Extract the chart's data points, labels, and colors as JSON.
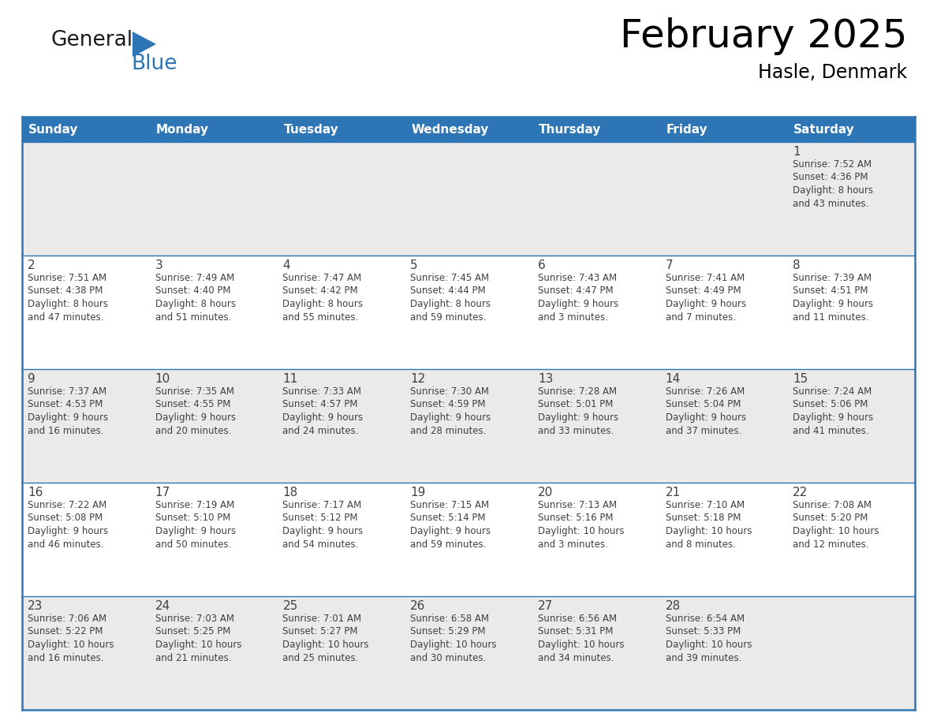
{
  "title": "February 2025",
  "subtitle": "Hasle, Denmark",
  "header_bg": "#2E75B6",
  "header_text_color": "#FFFFFF",
  "cell_bg_odd": "#EAEAEA",
  "cell_bg_even": "#FFFFFF",
  "border_color": "#2E75B6",
  "text_color": "#404040",
  "days_of_week": [
    "Sunday",
    "Monday",
    "Tuesday",
    "Wednesday",
    "Thursday",
    "Friday",
    "Saturday"
  ],
  "weeks": [
    [
      {
        "day": "",
        "info": ""
      },
      {
        "day": "",
        "info": ""
      },
      {
        "day": "",
        "info": ""
      },
      {
        "day": "",
        "info": ""
      },
      {
        "day": "",
        "info": ""
      },
      {
        "day": "",
        "info": ""
      },
      {
        "day": "1",
        "info": "Sunrise: 7:52 AM\nSunset: 4:36 PM\nDaylight: 8 hours\nand 43 minutes."
      }
    ],
    [
      {
        "day": "2",
        "info": "Sunrise: 7:51 AM\nSunset: 4:38 PM\nDaylight: 8 hours\nand 47 minutes."
      },
      {
        "day": "3",
        "info": "Sunrise: 7:49 AM\nSunset: 4:40 PM\nDaylight: 8 hours\nand 51 minutes."
      },
      {
        "day": "4",
        "info": "Sunrise: 7:47 AM\nSunset: 4:42 PM\nDaylight: 8 hours\nand 55 minutes."
      },
      {
        "day": "5",
        "info": "Sunrise: 7:45 AM\nSunset: 4:44 PM\nDaylight: 8 hours\nand 59 minutes."
      },
      {
        "day": "6",
        "info": "Sunrise: 7:43 AM\nSunset: 4:47 PM\nDaylight: 9 hours\nand 3 minutes."
      },
      {
        "day": "7",
        "info": "Sunrise: 7:41 AM\nSunset: 4:49 PM\nDaylight: 9 hours\nand 7 minutes."
      },
      {
        "day": "8",
        "info": "Sunrise: 7:39 AM\nSunset: 4:51 PM\nDaylight: 9 hours\nand 11 minutes."
      }
    ],
    [
      {
        "day": "9",
        "info": "Sunrise: 7:37 AM\nSunset: 4:53 PM\nDaylight: 9 hours\nand 16 minutes."
      },
      {
        "day": "10",
        "info": "Sunrise: 7:35 AM\nSunset: 4:55 PM\nDaylight: 9 hours\nand 20 minutes."
      },
      {
        "day": "11",
        "info": "Sunrise: 7:33 AM\nSunset: 4:57 PM\nDaylight: 9 hours\nand 24 minutes."
      },
      {
        "day": "12",
        "info": "Sunrise: 7:30 AM\nSunset: 4:59 PM\nDaylight: 9 hours\nand 28 minutes."
      },
      {
        "day": "13",
        "info": "Sunrise: 7:28 AM\nSunset: 5:01 PM\nDaylight: 9 hours\nand 33 minutes."
      },
      {
        "day": "14",
        "info": "Sunrise: 7:26 AM\nSunset: 5:04 PM\nDaylight: 9 hours\nand 37 minutes."
      },
      {
        "day": "15",
        "info": "Sunrise: 7:24 AM\nSunset: 5:06 PM\nDaylight: 9 hours\nand 41 minutes."
      }
    ],
    [
      {
        "day": "16",
        "info": "Sunrise: 7:22 AM\nSunset: 5:08 PM\nDaylight: 9 hours\nand 46 minutes."
      },
      {
        "day": "17",
        "info": "Sunrise: 7:19 AM\nSunset: 5:10 PM\nDaylight: 9 hours\nand 50 minutes."
      },
      {
        "day": "18",
        "info": "Sunrise: 7:17 AM\nSunset: 5:12 PM\nDaylight: 9 hours\nand 54 minutes."
      },
      {
        "day": "19",
        "info": "Sunrise: 7:15 AM\nSunset: 5:14 PM\nDaylight: 9 hours\nand 59 minutes."
      },
      {
        "day": "20",
        "info": "Sunrise: 7:13 AM\nSunset: 5:16 PM\nDaylight: 10 hours\nand 3 minutes."
      },
      {
        "day": "21",
        "info": "Sunrise: 7:10 AM\nSunset: 5:18 PM\nDaylight: 10 hours\nand 8 minutes."
      },
      {
        "day": "22",
        "info": "Sunrise: 7:08 AM\nSunset: 5:20 PM\nDaylight: 10 hours\nand 12 minutes."
      }
    ],
    [
      {
        "day": "23",
        "info": "Sunrise: 7:06 AM\nSunset: 5:22 PM\nDaylight: 10 hours\nand 16 minutes."
      },
      {
        "day": "24",
        "info": "Sunrise: 7:03 AM\nSunset: 5:25 PM\nDaylight: 10 hours\nand 21 minutes."
      },
      {
        "day": "25",
        "info": "Sunrise: 7:01 AM\nSunset: 5:27 PM\nDaylight: 10 hours\nand 25 minutes."
      },
      {
        "day": "26",
        "info": "Sunrise: 6:58 AM\nSunset: 5:29 PM\nDaylight: 10 hours\nand 30 minutes."
      },
      {
        "day": "27",
        "info": "Sunrise: 6:56 AM\nSunset: 5:31 PM\nDaylight: 10 hours\nand 34 minutes."
      },
      {
        "day": "28",
        "info": "Sunrise: 6:54 AM\nSunset: 5:33 PM\nDaylight: 10 hours\nand 39 minutes."
      },
      {
        "day": "",
        "info": ""
      }
    ]
  ],
  "logo_text_general": "General",
  "logo_text_blue": "Blue",
  "logo_color_general": "#1a1a1a",
  "logo_color_blue": "#2E75B6",
  "logo_triangle_color": "#2E75B6",
  "title_fontsize": 36,
  "subtitle_fontsize": 17,
  "header_fontsize": 11,
  "day_num_fontsize": 11,
  "cell_info_fontsize": 8.5
}
